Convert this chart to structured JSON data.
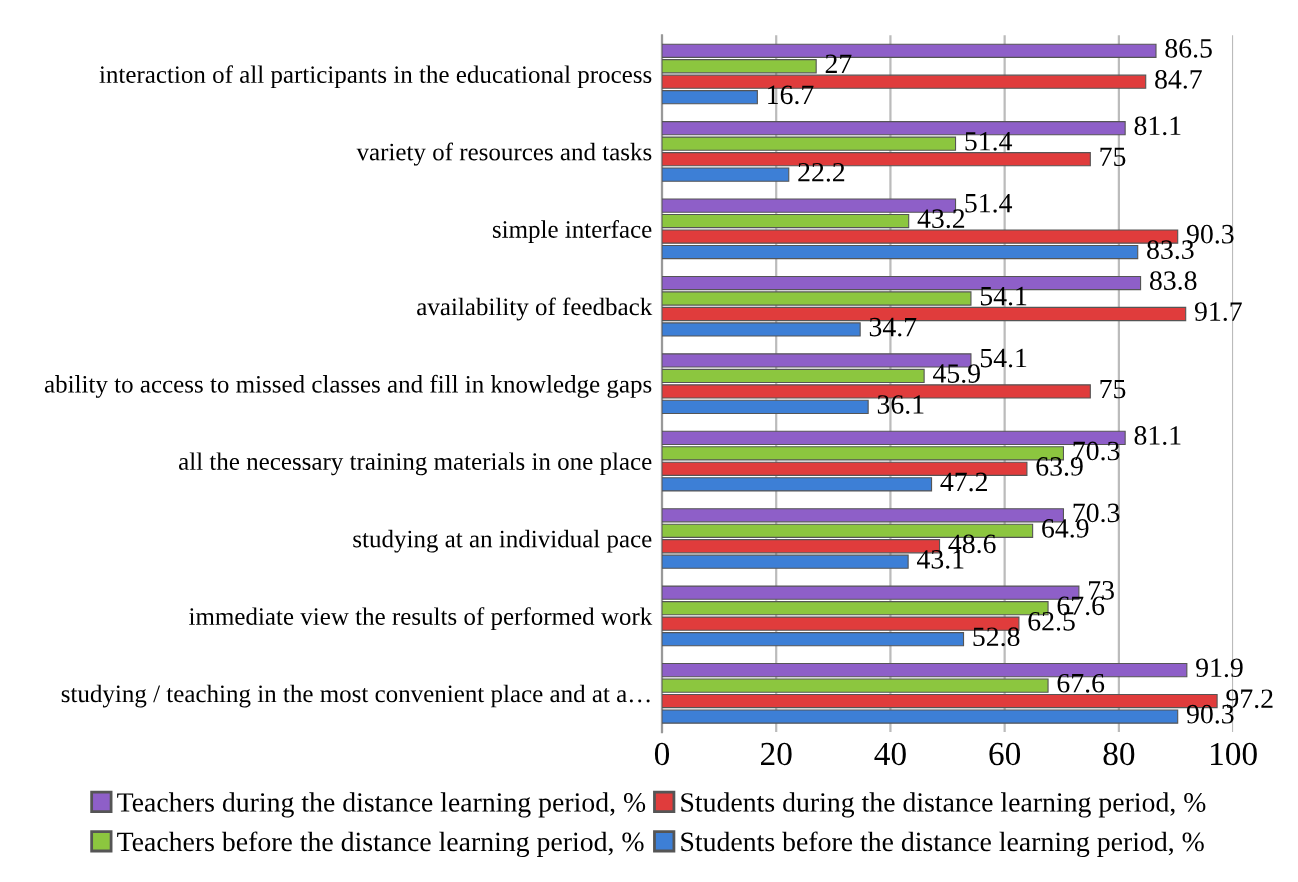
{
  "chart_data": {
    "type": "bar",
    "orientation": "horizontal",
    "categories": [
      "interaction of all participants in the educational process",
      "variety of resources and tasks",
      "simple interface",
      "availability of feedback",
      "ability to access to missed classes and fill in knowledge gaps",
      "all the necessary training materials in one place",
      "studying at an individual pace",
      "immediate view the results of performed work",
      "studying / teaching in the most convenient place and at a…"
    ],
    "series": [
      {
        "name": "Teachers during the distance learning period, %",
        "color": "#8e5fc8",
        "values": [
          86.5,
          81.1,
          51.4,
          83.8,
          54.1,
          81.1,
          70.3,
          73,
          91.9
        ]
      },
      {
        "name": "Teachers before the distance learning period, %",
        "color": "#8cc63f",
        "values": [
          27,
          51.4,
          43.2,
          54.1,
          45.9,
          70.3,
          64.9,
          67.6,
          67.6
        ]
      },
      {
        "name": "Students during the distance learning period, %",
        "color": "#e03c3c",
        "values": [
          84.7,
          75,
          90.3,
          91.7,
          75,
          63.9,
          48.6,
          62.5,
          97.2
        ]
      },
      {
        "name": "Students before the distance learning period, %",
        "color": "#3d7fd6",
        "values": [
          16.7,
          22.2,
          83.3,
          34.7,
          36.1,
          47.2,
          43.1,
          52.8,
          90.3
        ]
      }
    ],
    "xlim": [
      0,
      100
    ],
    "xticks": [
      0,
      20,
      40,
      60,
      80,
      100
    ],
    "grid": "x",
    "legend": "bottom",
    "data_labels": true
  }
}
